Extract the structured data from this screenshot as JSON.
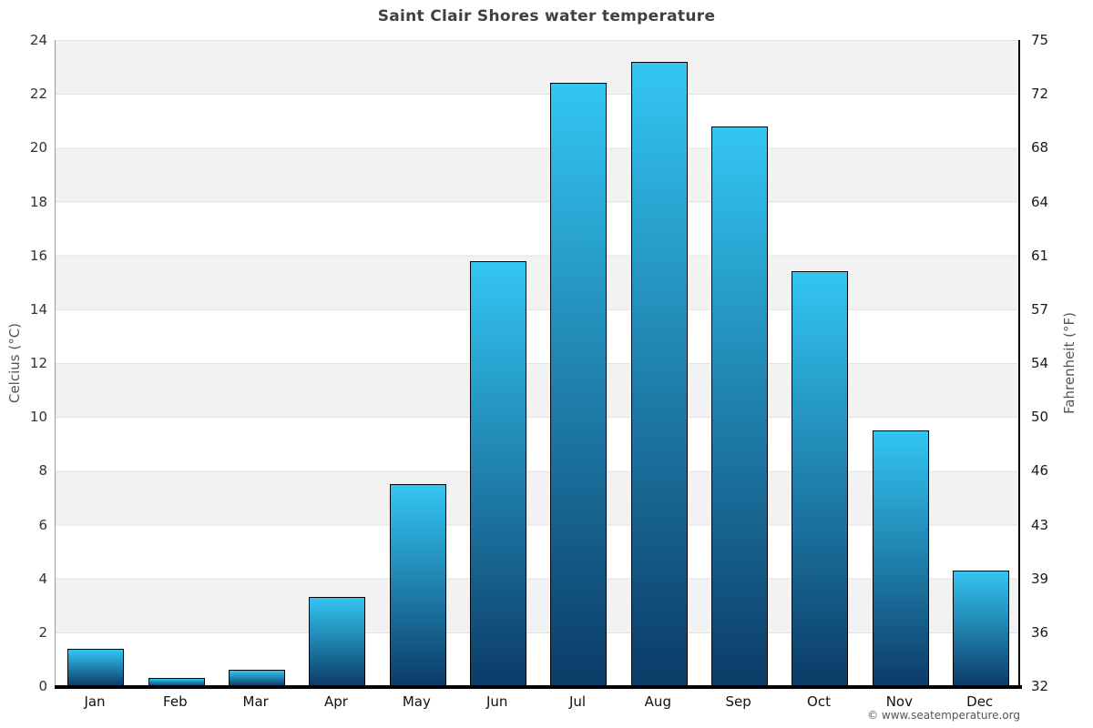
{
  "title": "Saint Clair Shores water temperature",
  "copyright": "© www.seatemperature.org",
  "axes": {
    "left_label": "Celcius (°C)",
    "right_label": "Fahrenheit (°F)"
  },
  "colors": {
    "bar_top": "#33c6f3",
    "bar_bottom": "#0c3b67",
    "band_gray": "#f2f2f2",
    "band_white": "#ffffff",
    "title_text": "#404040",
    "tick_text": "#333333"
  },
  "chart_data": {
    "type": "bar",
    "title": "Saint Clair Shores water temperature",
    "categories": [
      "Jan",
      "Feb",
      "Mar",
      "Apr",
      "May",
      "Jun",
      "Jul",
      "Aug",
      "Sep",
      "Oct",
      "Nov",
      "Dec"
    ],
    "values": [
      1.4,
      0.3,
      0.6,
      3.3,
      7.5,
      15.8,
      22.4,
      23.2,
      20.8,
      15.4,
      9.5,
      4.3
    ],
    "series_name": "Water temperature (°C)",
    "xlabel": "",
    "ylabel_left": "Celcius (°C)",
    "ylabel_right": "Fahrenheit (°F)",
    "ylim_left": [
      0,
      24
    ],
    "ylim_right": [
      32,
      75
    ],
    "yticks_left": [
      "24",
      "22",
      "20",
      "18",
      "16",
      "14",
      "12",
      "10",
      "8",
      "6",
      "4",
      "2",
      "0"
    ],
    "yticks_right": [
      "75",
      "72",
      "68",
      "64",
      "61",
      "57",
      "54",
      "50",
      "46",
      "43",
      "39",
      "36",
      "32"
    ],
    "grid": "horizontal-bands-alternating",
    "legend": "none"
  }
}
